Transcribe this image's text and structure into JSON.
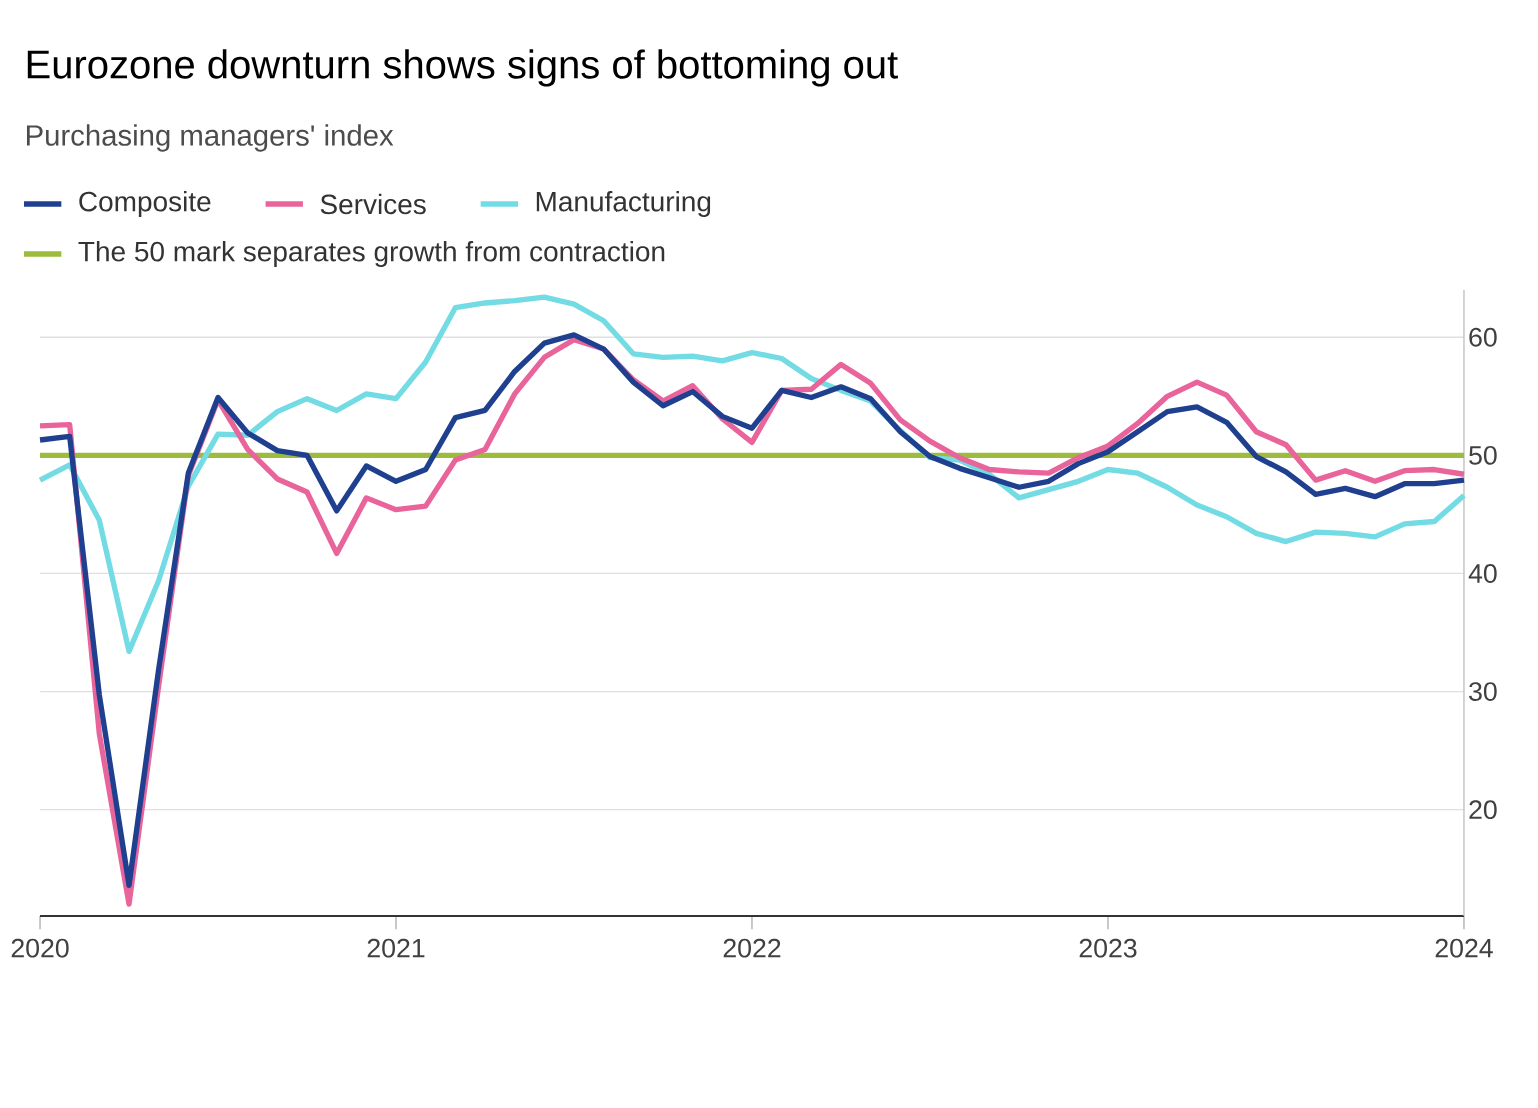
{
  "chart_data": {
    "type": "line",
    "title": "Eurozone downturn shows signs of bottoming out",
    "subtitle": "Purchasing managers' index",
    "x": [
      "2020-01",
      "2020-02",
      "2020-03",
      "2020-04",
      "2020-05",
      "2020-06",
      "2020-07",
      "2020-08",
      "2020-09",
      "2020-10",
      "2020-11",
      "2020-12",
      "2021-01",
      "2021-02",
      "2021-03",
      "2021-04",
      "2021-05",
      "2021-06",
      "2021-07",
      "2021-08",
      "2021-09",
      "2021-10",
      "2021-11",
      "2021-12",
      "2022-01",
      "2022-02",
      "2022-03",
      "2022-04",
      "2022-05",
      "2022-06",
      "2022-07",
      "2022-08",
      "2022-09",
      "2022-10",
      "2022-11",
      "2022-12",
      "2023-01",
      "2023-02",
      "2023-03",
      "2023-04",
      "2023-05",
      "2023-06",
      "2023-07",
      "2023-08",
      "2023-09",
      "2023-10",
      "2023-11",
      "2023-12",
      "2024-01"
    ],
    "series": [
      {
        "name": "Composite",
        "color": "#1f3f8f",
        "values": [
          51.3,
          51.6,
          29.7,
          13.6,
          31.9,
          48.5,
          54.9,
          51.9,
          50.4,
          50.0,
          45.3,
          49.1,
          47.8,
          48.8,
          53.2,
          53.8,
          57.1,
          59.5,
          60.2,
          59.0,
          56.2,
          54.2,
          55.4,
          53.3,
          52.3,
          55.5,
          54.9,
          55.8,
          54.8,
          52.0,
          49.9,
          48.9,
          48.1,
          47.3,
          47.8,
          49.3,
          50.3,
          52.0,
          53.7,
          54.1,
          52.8,
          49.9,
          48.6,
          46.7,
          47.2,
          46.5,
          47.6,
          47.6,
          47.9
        ]
      },
      {
        "name": "Services",
        "color": "#e8649a",
        "values": [
          52.5,
          52.6,
          26.4,
          12.0,
          30.5,
          48.3,
          54.7,
          50.5,
          48.0,
          46.9,
          41.7,
          46.4,
          45.4,
          45.7,
          49.6,
          50.5,
          55.2,
          58.3,
          59.8,
          59.0,
          56.4,
          54.6,
          55.9,
          53.1,
          51.1,
          55.5,
          55.6,
          57.7,
          56.1,
          53.0,
          51.2,
          49.8,
          48.8,
          48.6,
          48.5,
          49.8,
          50.8,
          52.7,
          55.0,
          56.2,
          55.1,
          52.0,
          50.9,
          47.9,
          48.7,
          47.8,
          48.7,
          48.8,
          48.4
        ]
      },
      {
        "name": "Manufacturing",
        "color": "#72dbe3",
        "values": [
          47.9,
          49.2,
          44.5,
          33.4,
          39.4,
          47.4,
          51.8,
          51.7,
          53.7,
          54.8,
          53.8,
          55.2,
          54.8,
          57.9,
          62.5,
          62.9,
          63.1,
          63.4,
          62.8,
          61.4,
          58.6,
          58.3,
          58.4,
          58.0,
          58.7,
          58.2,
          56.5,
          55.5,
          54.6,
          52.1,
          49.8,
          49.6,
          48.4,
          46.4,
          47.1,
          47.8,
          48.8,
          48.5,
          47.3,
          45.8,
          44.8,
          43.4,
          42.7,
          43.5,
          43.4,
          43.1,
          44.2,
          44.4,
          46.6
        ]
      }
    ],
    "ref_lines": [
      {
        "axis": "y",
        "value": 50,
        "label": "The 50 mark separates growth from contraction",
        "color": "#9dbb3d"
      }
    ],
    "xlim": [
      "2020-01",
      "2024-01"
    ],
    "xticks": [
      "2020",
      "2021",
      "2022",
      "2023",
      "2024"
    ],
    "ylim": [
      11,
      64
    ],
    "yticks": [
      20,
      30,
      40,
      50,
      60
    ],
    "grid": "y",
    "legend": "top",
    "line_style": "solid",
    "marker": "none"
  }
}
